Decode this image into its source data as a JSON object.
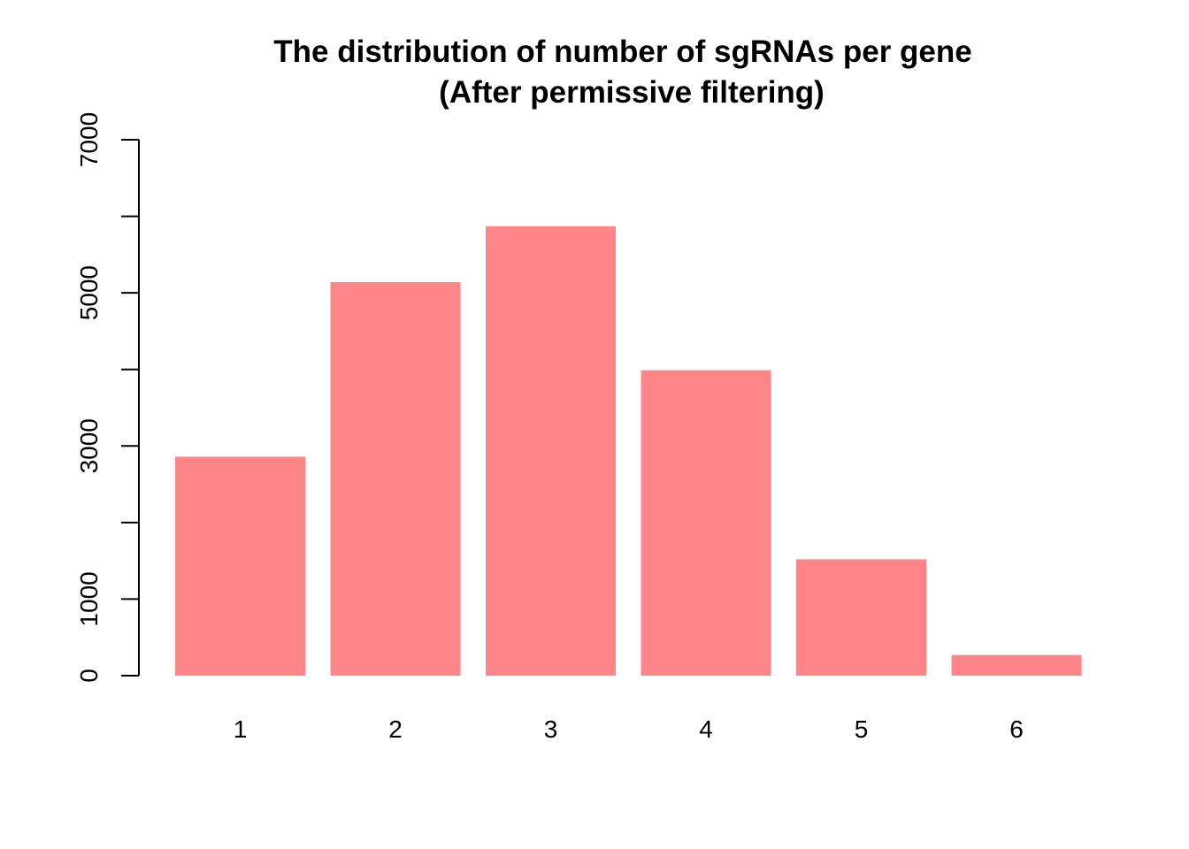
{
  "chart_data": {
    "type": "bar",
    "title": "The distribution of number of sgRNAs per gene",
    "subtitle": "(After permissive filtering)",
    "xlabel": "",
    "ylabel": "",
    "categories": [
      "1",
      "2",
      "3",
      "4",
      "5",
      "6"
    ],
    "values": [
      2860,
      5140,
      5870,
      3990,
      1520,
      270
    ],
    "ylim": [
      0,
      7000
    ],
    "yticks": [
      0,
      1000,
      2000,
      3000,
      4000,
      5000,
      6000,
      7000
    ],
    "ytick_labels": [
      "0",
      "1000",
      "",
      "3000",
      "",
      "5000",
      "",
      "7000"
    ],
    "bar_color": "#FF8588",
    "axis_color": "#000000",
    "grid": false
  }
}
